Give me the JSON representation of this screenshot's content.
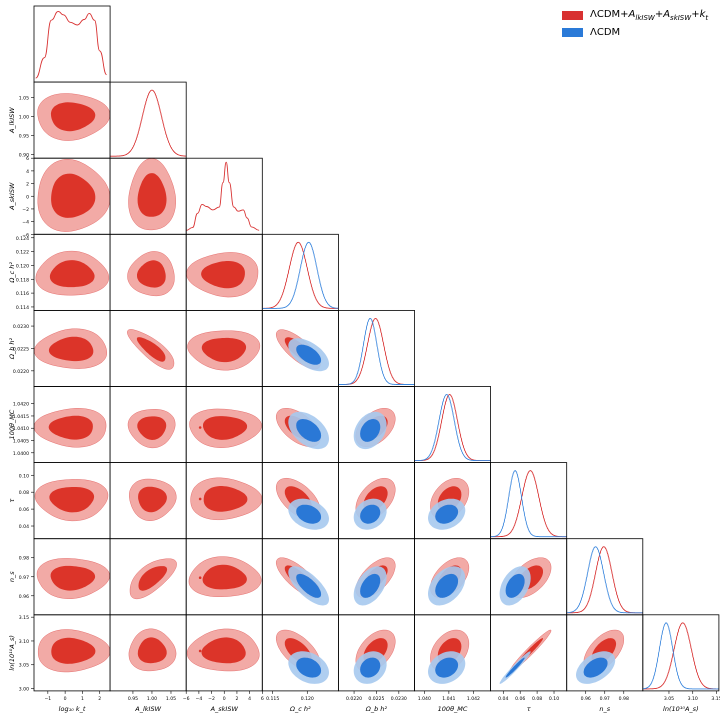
{
  "legend": {
    "items": [
      {
        "label_prefix": "ΛCDM+",
        "label_math": "A",
        "sub1": "lkISW",
        "mid": "+A",
        "sub2": "skISW",
        "tail": "+k",
        "sub3": "t",
        "color": "#d83131"
      },
      {
        "label_prefix": "ΛCDM",
        "label_math": "",
        "sub1": "",
        "mid": "",
        "sub2": "",
        "tail": "",
        "sub3": "",
        "color": "#2a7ad8"
      }
    ]
  },
  "colors": {
    "red_line": "#d83131",
    "red_outer": "#f2aaa6",
    "red_inner": "#dc3429",
    "blue_line": "#3a86dd",
    "blue_outer": "#a6c9ee",
    "blue_inner": "#2a78d6"
  },
  "chart_data": {
    "type": "triangle_corner_plot",
    "params": [
      {
        "id": "log10kt",
        "label": "log₁₀ k_t",
        "range": [
          -1.8,
          2.6
        ],
        "ticks": [
          -1,
          0,
          1,
          2
        ],
        "tick_labels": [
          "−1",
          "0",
          "1",
          "2"
        ]
      },
      {
        "id": "Alksw",
        "label": "A_lkISW",
        "range": [
          0.89,
          1.09
        ],
        "ticks": [
          0.9,
          0.95,
          1.0,
          1.05
        ],
        "tick_labels": [
          "0.90",
          "0.95",
          "1.00",
          "1.05"
        ]
      },
      {
        "id": "Asksw",
        "label": "A_skISW",
        "range": [
          -6,
          6
        ],
        "ticks": [
          -6,
          -4,
          -2,
          0,
          2,
          4,
          6
        ],
        "tick_labels": [
          "−6",
          "−4",
          "−2",
          "0",
          "2",
          "4",
          "6"
        ]
      },
      {
        "id": "omch2",
        "label": "Ω_c h²",
        "range": [
          0.1135,
          0.1245
        ],
        "ticks": [
          0.114,
          0.116,
          0.118,
          0.12,
          0.122,
          0.124
        ],
        "tick_labels": [
          "0.114",
          "0.116",
          "0.118",
          "0.120",
          "0.122",
          "0.124"
        ]
      },
      {
        "id": "ombh2",
        "label": "Ω_b h²",
        "range": [
          0.02165,
          0.02335
        ],
        "ticks": [
          0.022,
          0.0225,
          0.023
        ],
        "tick_labels": [
          "0.0220",
          "0.0225",
          "0.0230"
        ]
      },
      {
        "id": "theta",
        "label": "100θ_MC",
        "range": [
          1.0396,
          1.0427
        ],
        "ticks": [
          1.04,
          1.0405,
          1.041,
          1.0415,
          1.042
        ],
        "tick_labels": [
          "1.0400",
          "1.0405",
          "1.0410",
          "1.0415",
          "1.0420"
        ]
      },
      {
        "id": "tau",
        "label": "τ",
        "range": [
          0.025,
          0.115
        ],
        "ticks": [
          0.04,
          0.06,
          0.08,
          0.1
        ],
        "tick_labels": [
          "0.04",
          "0.06",
          "0.08",
          "0.10"
        ]
      },
      {
        "id": "ns",
        "label": "n_s",
        "range": [
          0.95,
          0.99
        ],
        "ticks": [
          0.96,
          0.97,
          0.98
        ],
        "tick_labels": [
          "0.96",
          "0.97",
          "0.98"
        ]
      },
      {
        "id": "logA",
        "label": "ln(10¹⁰A_s)",
        "range": [
          2.995,
          3.155
        ],
        "ticks": [
          3.0,
          3.05,
          3.1,
          3.15
        ],
        "tick_labels": [
          "3.00",
          "3.05",
          "3.10",
          "3.15"
        ]
      }
    ],
    "bottom_tick_labels": [
      [
        "−1",
        "0",
        "1",
        "2"
      ],
      [
        "0.95",
        "1.00",
        "1.05"
      ],
      [
        "−6",
        "−4",
        "−2",
        "0",
        "2",
        "4",
        "6"
      ],
      [
        "0.115",
        "0.120"
      ],
      [
        "0.0220",
        "0.0225",
        "0.0230"
      ],
      [
        "1.040",
        "1.041",
        "1.042"
      ],
      [
        "0.04",
        "0.06",
        "0.08",
        "0.10"
      ],
      [
        "0.96",
        "0.97",
        "0.98"
      ],
      [
        "3.05",
        "3.10",
        "3.15"
      ]
    ],
    "bottom_tick_values": [
      [
        -1,
        0,
        1,
        2
      ],
      [
        0.95,
        1.0,
        1.05
      ],
      [
        -6,
        -4,
        -2,
        0,
        2,
        4,
        6
      ],
      [
        0.115,
        0.12
      ],
      [
        0.022,
        0.0225,
        0.023
      ],
      [
        1.04,
        1.041,
        1.042
      ],
      [
        0.04,
        0.06,
        0.08,
        0.1
      ],
      [
        0.96,
        0.97,
        0.98
      ],
      [
        3.05,
        3.1,
        3.15
      ]
    ],
    "left_ticks": [
      [],
      {
        "values": [
          0.9,
          0.95,
          1.0,
          1.05
        ],
        "labels": [
          "0.90",
          "0.95",
          "1.00",
          "1.05"
        ]
      },
      {
        "values": [
          -6,
          -4,
          -2,
          0,
          2,
          4,
          6
        ],
        "labels": [
          "−6",
          "−4",
          "−2",
          "0",
          "2",
          "4",
          "6"
        ]
      },
      {
        "values": [
          0.114,
          0.116,
          0.118,
          0.12,
          0.122,
          0.124
        ],
        "labels": [
          "0.114",
          "0.116",
          "0.118",
          "0.120",
          "0.122",
          "0.124"
        ]
      },
      {
        "values": [
          0.022,
          0.0225,
          0.023
        ],
        "labels": [
          "0.0220",
          "0.0225",
          "0.0230"
        ]
      },
      {
        "values": [
          1.04,
          1.0405,
          1.041,
          1.0415,
          1.042
        ],
        "labels": [
          "1.0400",
          "1.0405",
          "1.0410",
          "1.0415",
          "1.0420"
        ]
      },
      {
        "values": [
          0.04,
          0.06,
          0.08,
          0.1
        ],
        "labels": [
          "0.04",
          "0.06",
          "0.08",
          "0.10"
        ]
      },
      {
        "values": [
          0.96,
          0.97,
          0.98
        ],
        "labels": [
          "0.96",
          "0.97",
          "0.98"
        ]
      },
      {
        "values": [
          3.0,
          3.05,
          3.1,
          3.15
        ],
        "labels": [
          "3.00",
          "3.05",
          "3.10",
          "3.15"
        ]
      }
    ],
    "left_labels": [
      "",
      "A_lkISW",
      "A_skISW",
      "Ω_c h²",
      "Ω_b h²",
      "100θ_MC",
      "τ",
      "n_s",
      "ln(10¹⁰A_s)"
    ],
    "bottom_labels": [
      "log₁₀ k_t",
      "A_lkISW",
      "A_skISW",
      "Ω_c h²",
      "Ω_b h²",
      "100θ_MC",
      "τ",
      "n_s",
      "ln(10¹⁰A_s)"
    ],
    "series": [
      {
        "name": "ΛCDM+A_lkISW+A_skISW+k_t",
        "mean": [
          0.4,
          1.0,
          0.0,
          0.1187,
          0.02248,
          1.04103,
          0.072,
          0.9695,
          3.079
        ],
        "sigma": [
          0.85,
          0.025,
          2.3,
          0.0013,
          0.00018,
          0.00032,
          0.01,
          0.0043,
          0.018
        ],
        "corr": {
          "4-3": -0.75,
          "5-3": -0.55,
          "6-3": -0.55,
          "7-3": -0.75,
          "8-3": -0.6,
          "5-4": 0.45,
          "6-4": 0.45,
          "7-4": 0.6,
          "8-4": 0.45,
          "6-5": 0.35,
          "7-5": 0.5,
          "8-5": 0.35,
          "7-6": 0.5,
          "8-6": 0.97,
          "8-7": 0.55,
          "4-1": -0.8,
          "7-1": 0.65,
          "3-1": 0.0
        }
      },
      {
        "name": "ΛCDM",
        "mean": [
          null,
          null,
          null,
          0.1202,
          0.02236,
          1.04091,
          0.054,
          0.9652,
          3.044
        ],
        "sigma": [
          null,
          null,
          null,
          0.0012,
          0.00015,
          0.00031,
          0.0075,
          0.0042,
          0.014
        ],
        "corr": {
          "4-3": -0.55,
          "5-3": -0.45,
          "6-3": -0.3,
          "7-3": -0.7,
          "8-3": -0.3,
          "5-4": 0.3,
          "6-4": 0.2,
          "7-4": 0.45,
          "8-4": 0.2,
          "6-5": 0.25,
          "7-5": 0.4,
          "8-5": 0.25,
          "7-6": 0.4,
          "8-6": 0.97,
          "8-7": 0.45
        }
      }
    ],
    "special_1d": {
      "log10kt": [
        [
          -1.7,
          0.0
        ],
        [
          -1.2,
          0.3
        ],
        [
          -0.8,
          0.85
        ],
        [
          -0.4,
          0.98
        ],
        [
          -0.1,
          0.93
        ],
        [
          0.3,
          0.82
        ],
        [
          0.7,
          0.78
        ],
        [
          1.1,
          0.86
        ],
        [
          1.4,
          0.95
        ],
        [
          1.7,
          0.85
        ],
        [
          2.0,
          0.4
        ],
        [
          2.4,
          0.05
        ]
      ],
      "Asksw": [
        [
          -6,
          0.0
        ],
        [
          -5,
          0.04
        ],
        [
          -4.2,
          0.25
        ],
        [
          -3.5,
          0.38
        ],
        [
          -2.8,
          0.35
        ],
        [
          -1.8,
          0.3
        ],
        [
          -0.8,
          0.34
        ],
        [
          -0.2,
          0.7
        ],
        [
          0.3,
          1.0
        ],
        [
          0.8,
          0.7
        ],
        [
          1.5,
          0.34
        ],
        [
          2.2,
          0.28
        ],
        [
          3.0,
          0.3
        ],
        [
          3.6,
          0.18
        ],
        [
          4.3,
          0.05
        ],
        [
          5.5,
          0.0
        ]
      ]
    }
  }
}
